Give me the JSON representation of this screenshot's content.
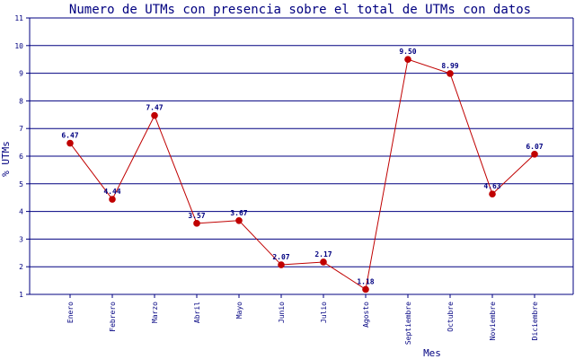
{
  "chart_data": {
    "type": "line",
    "title": "Numero de UTMs con presencia sobre el total de UTMs con datos",
    "xlabel": "Mes",
    "ylabel": "% UTMs",
    "ylim": [
      1,
      11
    ],
    "yticks": [
      1,
      2,
      3,
      4,
      5,
      6,
      7,
      8,
      9,
      10,
      11
    ],
    "grid": true,
    "categories": [
      "Enero",
      "Febrero",
      "Marzo",
      "Abril",
      "Mayo",
      "Junio",
      "Julio",
      "Agosto",
      "Septiembre",
      "Octubre",
      "Noviembre",
      "Diciembre"
    ],
    "values": [
      6.47,
      4.44,
      7.47,
      3.57,
      3.67,
      2.07,
      2.17,
      1.18,
      9.5,
      8.99,
      4.63,
      6.07
    ],
    "data_labels": [
      "6.47",
      "4.44",
      "7.47",
      "3.57",
      "3.67",
      "2.07",
      "2.17",
      "1.18",
      "9.50",
      "8.99",
      "4.63",
      "6.07"
    ],
    "colors": {
      "line": "#c00000",
      "marker": "#c00000",
      "grid": "#000080",
      "text": "#000080"
    }
  }
}
